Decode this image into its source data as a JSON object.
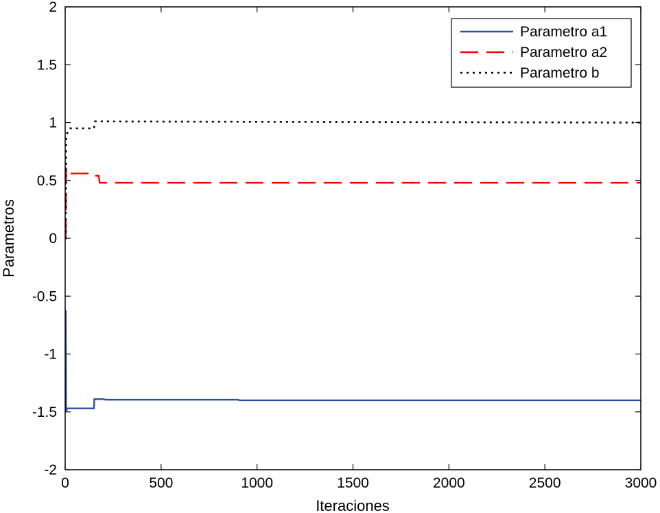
{
  "chart_data": {
    "type": "line",
    "xlabel": "Iteraciones",
    "ylabel": "Parametros",
    "xlim": [
      0,
      3000
    ],
    "ylim": [
      -2,
      2
    ],
    "xticks": [
      0,
      500,
      1000,
      1500,
      2000,
      2500,
      3000
    ],
    "yticks": [
      -2,
      -1.5,
      -1,
      -0.5,
      0,
      0.5,
      1,
      1.5,
      2
    ],
    "xtick_labels": [
      "0",
      "500",
      "1000",
      "1500",
      "2000",
      "2500",
      "3000"
    ],
    "ytick_labels": [
      "-2",
      "-1.5",
      "-1",
      "-0.5",
      "0",
      "0.5",
      "1",
      "1.5",
      "2"
    ],
    "grid": false,
    "legend_position": "top-right",
    "series": [
      {
        "name": "Parametro a1",
        "color": "#2b4ea0",
        "style": "solid",
        "points": [
          [
            0,
            -0.63
          ],
          [
            3,
            -0.63
          ],
          [
            5,
            -1.5
          ],
          [
            10,
            -1.47
          ],
          [
            150,
            -1.47
          ],
          [
            152,
            -1.39
          ],
          [
            200,
            -1.39
          ],
          [
            210,
            -1.395
          ],
          [
            900,
            -1.395
          ],
          [
            910,
            -1.4
          ],
          [
            3000,
            -1.4
          ]
        ]
      },
      {
        "name": "Parametro a2",
        "color": "#ff0000",
        "style": "dashed",
        "points": [
          [
            0,
            0.02
          ],
          [
            3,
            0.02
          ],
          [
            5,
            0.61
          ],
          [
            10,
            0.56
          ],
          [
            150,
            0.56
          ],
          [
            155,
            0.54
          ],
          [
            175,
            0.54
          ],
          [
            180,
            0.48
          ],
          [
            3000,
            0.48
          ]
        ]
      },
      {
        "name": "Parametro b",
        "color": "#000000",
        "style": "dotted",
        "points": [
          [
            0,
            0.0
          ],
          [
            3,
            0.0
          ],
          [
            5,
            0.88
          ],
          [
            15,
            0.93
          ],
          [
            25,
            0.95
          ],
          [
            150,
            0.95
          ],
          [
            155,
            1.01
          ],
          [
            3000,
            1.0
          ]
        ]
      }
    ]
  }
}
